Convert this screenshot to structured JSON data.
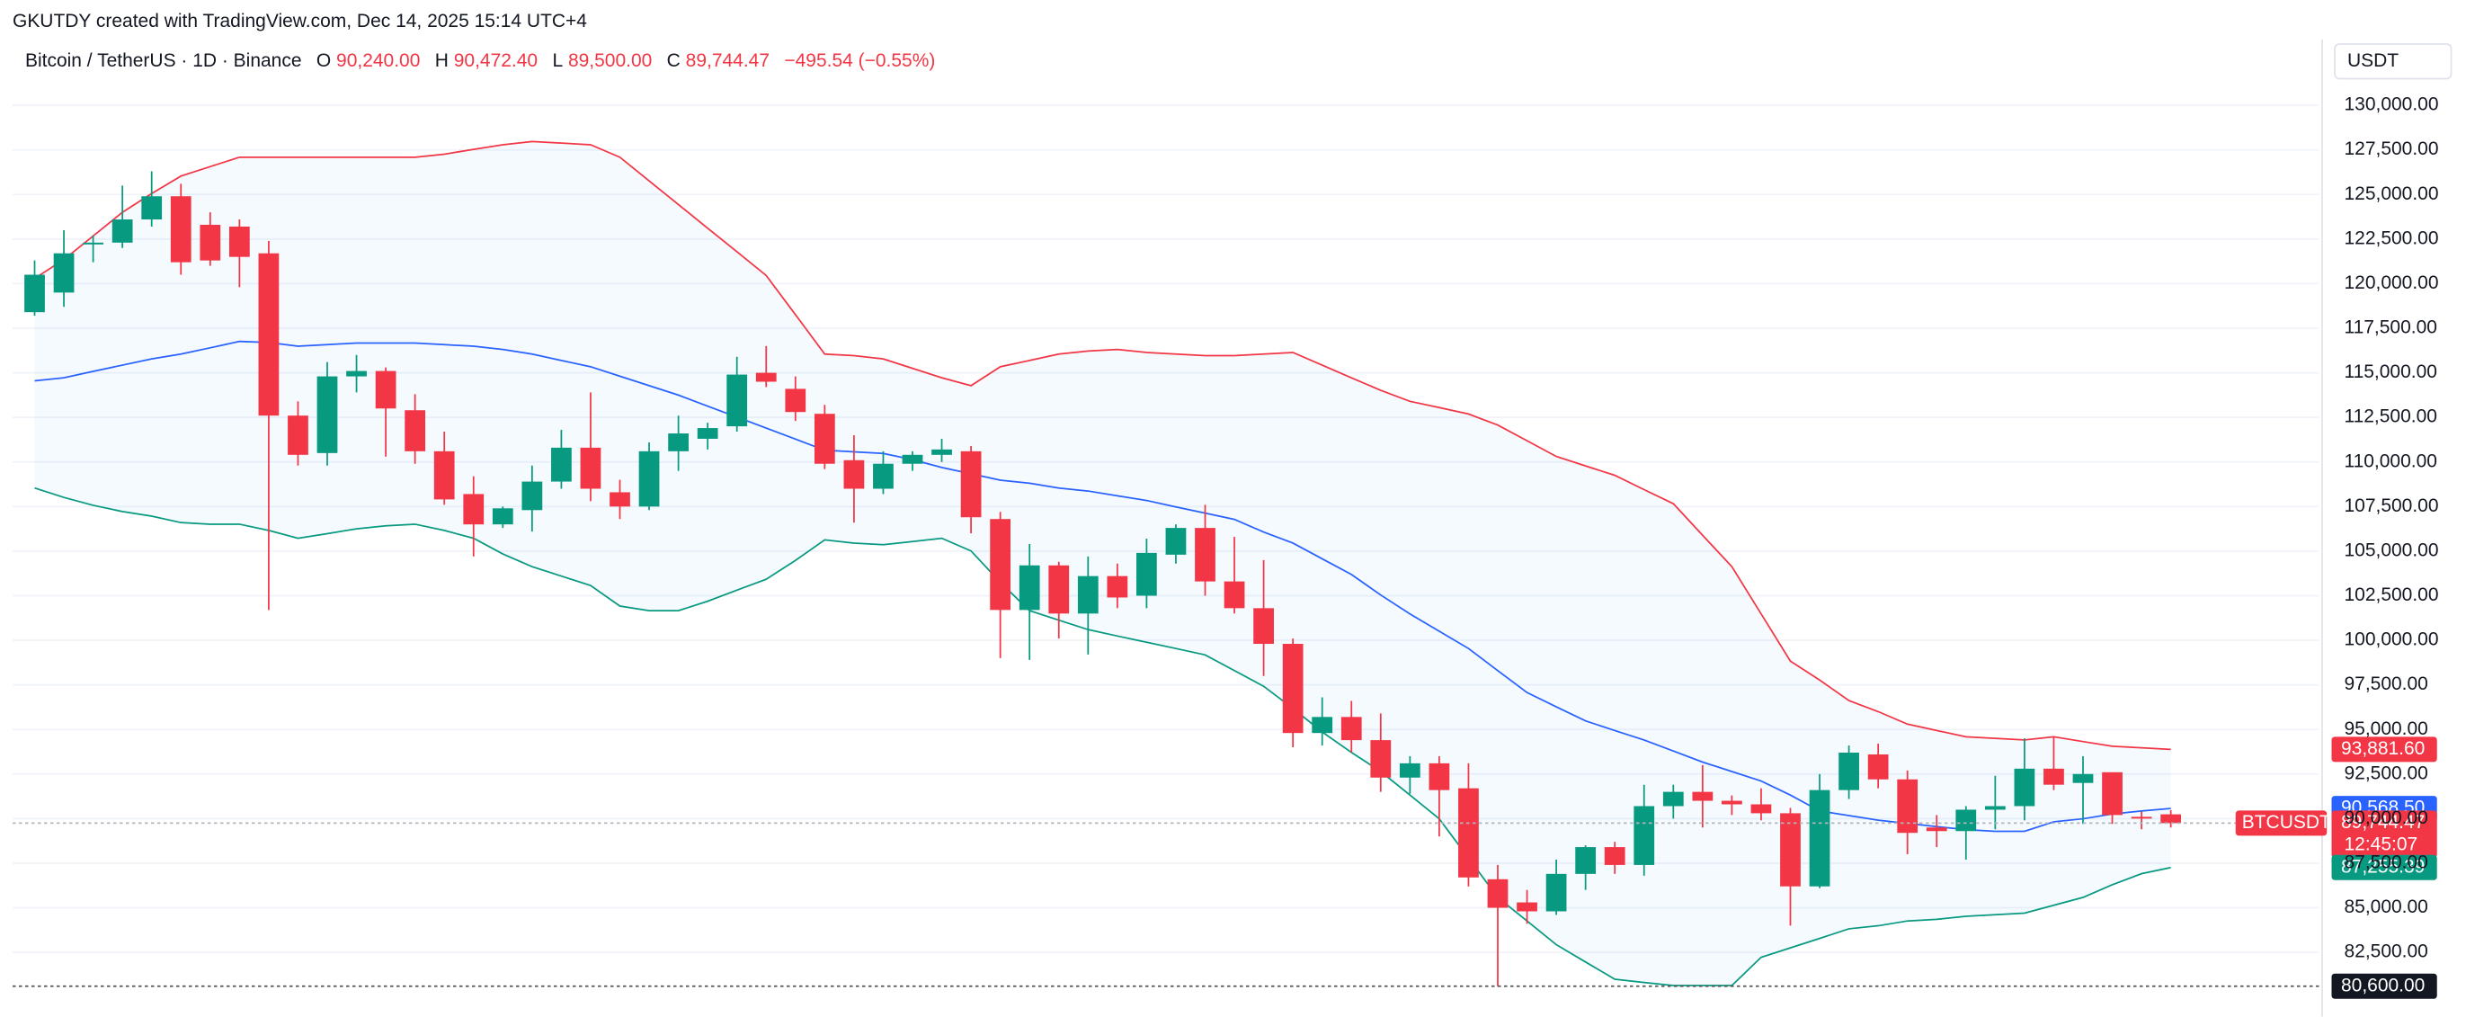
{
  "chart_data": {
    "type": "candlestick",
    "attribution": "GKUTDY created with TradingView.com, Dec 14, 2025 15:14 UTC+4",
    "title": "Bitcoin / TetherUS · 1D · Binance",
    "legend_ohlc": [
      {
        "key": "O",
        "value": "90,240.00"
      },
      {
        "key": "H",
        "value": "90,472.40"
      },
      {
        "key": "L",
        "value": "89,500.00"
      },
      {
        "key": "C",
        "value": "89,744.47"
      }
    ],
    "change": "−495.54 (−0.55%)",
    "currency": "USDT",
    "up_color": "#089981",
    "down_color": "#f23645",
    "ohlc": {
      "open": [
        118400,
        119500,
        122200,
        122300,
        123600,
        124900,
        123300,
        123200,
        121700,
        112600,
        110500,
        114800,
        115100,
        112900,
        110600,
        108200,
        106500,
        107300,
        108900,
        110800,
        108300,
        107500,
        110600,
        111300,
        112000,
        115000,
        114100,
        112700,
        110100,
        108500,
        109900,
        110400,
        110600,
        106800,
        101700,
        104200,
        101500,
        103600,
        102500,
        104800,
        106300,
        103300,
        101800,
        99800,
        94800,
        95700,
        94400,
        92300,
        93100,
        91700,
        86600,
        85300,
        84800,
        86900,
        88400,
        87400,
        90700,
        91500,
        91000,
        90800,
        90300,
        86200,
        91600,
        93600,
        92200,
        89500,
        89300,
        90500,
        90700,
        92800,
        92000,
        92600,
        90100,
        90240
      ],
      "high": [
        121300,
        123000,
        122700,
        125500,
        126300,
        125600,
        124000,
        123600,
        122400,
        113400,
        115600,
        116000,
        115300,
        113800,
        111700,
        109200,
        107500,
        109800,
        111800,
        113900,
        109000,
        111100,
        112600,
        112200,
        115900,
        116500,
        114800,
        113200,
        111500,
        110600,
        110600,
        111300,
        110900,
        107200,
        105400,
        104400,
        104700,
        104300,
        105700,
        106500,
        107600,
        105800,
        104500,
        100100,
        96800,
        96600,
        95900,
        93500,
        93500,
        93100,
        87400,
        86000,
        87700,
        88500,
        88700,
        91900,
        91900,
        93000,
        91300,
        91700,
        90600,
        92500,
        94100,
        94200,
        92700,
        90200,
        90700,
        92400,
        94500,
        94600,
        93500,
        92600,
        90400,
        90472.4
      ],
      "low": [
        118200,
        118700,
        121200,
        122000,
        123200,
        120500,
        121000,
        119800,
        101700,
        109800,
        109800,
        113900,
        110300,
        109900,
        107600,
        104700,
        106300,
        106100,
        108500,
        107800,
        106800,
        107300,
        109500,
        110700,
        111700,
        114200,
        112300,
        109600,
        106600,
        108200,
        109500,
        110000,
        106000,
        99000,
        98900,
        100100,
        99200,
        101800,
        101800,
        104300,
        102500,
        101500,
        98000,
        94000,
        94100,
        93700,
        91500,
        91400,
        89000,
        86200,
        80600,
        84100,
        84600,
        86000,
        86900,
        86800,
        90000,
        89500,
        90200,
        89900,
        84000,
        86100,
        91100,
        91700,
        88000,
        88400,
        87700,
        89400,
        89900,
        91600,
        89700,
        89700,
        89400,
        89500
      ],
      "close": [
        120500,
        121700,
        122300,
        123600,
        124900,
        121200,
        121300,
        121500,
        112600,
        110400,
        114800,
        115100,
        113000,
        110600,
        107900,
        106500,
        107400,
        108900,
        110800,
        108500,
        107500,
        110600,
        111600,
        111900,
        114900,
        114500,
        112800,
        109900,
        108500,
        109900,
        110400,
        110700,
        106900,
        101700,
        104200,
        101500,
        103600,
        102400,
        104900,
        106300,
        103300,
        101800,
        99800,
        94800,
        95700,
        94400,
        92300,
        93100,
        91600,
        86700,
        85000,
        84800,
        86900,
        88400,
        87400,
        90700,
        91500,
        91000,
        90800,
        90300,
        86200,
        91600,
        93700,
        92200,
        89200,
        89300,
        90500,
        90700,
        92800,
        91900,
        92500,
        90200,
        90000,
        89744.47
      ]
    },
    "bands": {
      "fill": "#2196f3",
      "upper": {
        "color": "#f23645",
        "values": [
          120290,
          121350,
          122670,
          124000,
          125050,
          126030,
          126560,
          127090,
          127090,
          127090,
          127090,
          127090,
          127090,
          127090,
          127260,
          127530,
          127790,
          127970,
          127880,
          127790,
          127090,
          125760,
          124440,
          123110,
          121790,
          120460,
          118260,
          116050,
          115960,
          115780,
          115250,
          114720,
          114280,
          115340,
          115690,
          116050,
          116220,
          116310,
          116140,
          116050,
          115960,
          115960,
          116050,
          116140,
          115430,
          114720,
          114020,
          113400,
          113050,
          112690,
          112070,
          111190,
          110310,
          109780,
          109250,
          108450,
          107660,
          105890,
          104130,
          101480,
          98830,
          97770,
          96620,
          96000,
          95300,
          94940,
          94590,
          94500,
          94410,
          94590,
          94320,
          94060,
          93970,
          93881.6
        ]
      },
      "middle": {
        "color": "#2962ff",
        "values": [
          114550,
          114720,
          115080,
          115430,
          115780,
          116050,
          116400,
          116760,
          116700,
          116490,
          116580,
          116670,
          116670,
          116670,
          116580,
          116490,
          116310,
          116050,
          115690,
          115340,
          114810,
          114280,
          113750,
          113130,
          112520,
          111900,
          111280,
          110660,
          110570,
          110480,
          110130,
          109690,
          109340,
          108980,
          108810,
          108540,
          108370,
          108100,
          107840,
          107480,
          107130,
          106780,
          106070,
          105450,
          104570,
          103690,
          102540,
          101480,
          100510,
          99540,
          98300,
          97070,
          96270,
          95480,
          94940,
          94410,
          93790,
          93170,
          92640,
          92110,
          91320,
          90430,
          90170,
          89910,
          89730,
          89550,
          89380,
          89290,
          89290,
          89820,
          89990,
          90260,
          90430,
          90568.5
        ]
      },
      "lower": {
        "color": "#089981",
        "values": [
          108540,
          108010,
          107570,
          107220,
          106960,
          106600,
          106510,
          106510,
          106160,
          105720,
          105980,
          106250,
          106420,
          106510,
          106160,
          105720,
          104840,
          104130,
          103600,
          103070,
          101920,
          101660,
          101660,
          102190,
          102810,
          103420,
          104480,
          105630,
          105450,
          105360,
          105540,
          105720,
          105010,
          103250,
          101660,
          101130,
          100600,
          100240,
          99890,
          99540,
          99180,
          98300,
          97420,
          96180,
          94860,
          93710,
          92640,
          91320,
          89990,
          87790,
          85580,
          84260,
          82930,
          81960,
          80990,
          80810,
          80640,
          80640,
          80640,
          82220,
          82750,
          83280,
          83820,
          83990,
          84260,
          84350,
          84520,
          84610,
          84700,
          85140,
          85580,
          86290,
          86910,
          87255.39
        ]
      }
    },
    "ylim": [
      78900,
      133700
    ],
    "yticks": [
      {
        "value": 82500,
        "label": "82,500.00"
      },
      {
        "value": 85000,
        "label": "85,000.00"
      },
      {
        "value": 87500,
        "label": "87,500.00"
      },
      {
        "value": 90000,
        "label": "90,000.00"
      },
      {
        "value": 92500,
        "label": "92,500.00"
      },
      {
        "value": 95000,
        "label": "95,000.00"
      },
      {
        "value": 97500,
        "label": "97,500.00"
      },
      {
        "value": 100000,
        "label": "100,000.00"
      },
      {
        "value": 102500,
        "label": "102,500.00"
      },
      {
        "value": 105000,
        "label": "105,000.00"
      },
      {
        "value": 107500,
        "label": "107,500.00"
      },
      {
        "value": 110000,
        "label": "110,000.00"
      },
      {
        "value": 112500,
        "label": "112,500.00"
      },
      {
        "value": 115000,
        "label": "115,000.00"
      },
      {
        "value": 117500,
        "label": "117,500.00"
      },
      {
        "value": 120000,
        "label": "120,000.00"
      },
      {
        "value": 122500,
        "label": "122,500.00"
      },
      {
        "value": 125000,
        "label": "125,000.00"
      },
      {
        "value": 127500,
        "label": "127,500.00"
      },
      {
        "value": 130000,
        "label": "130,000.00"
      }
    ],
    "grid": true,
    "price_tags": [
      {
        "value": 93881.6,
        "label": "93,881.60",
        "color": "#f23645"
      },
      {
        "value": 90568.5,
        "label": "90,568.50",
        "color": "#2962ff"
      },
      {
        "value": 89744.47,
        "label": "89,744.47",
        "color": "#f23645",
        "countdown": "12:45:07",
        "symbol": "BTCUSDT",
        "line": "#b2b5be"
      },
      {
        "value": 87255.39,
        "label": "87,255.39",
        "color": "#089981"
      },
      {
        "value": 80600,
        "label": "80,600.00",
        "color": "#131722",
        "line": "#555555"
      }
    ]
  }
}
